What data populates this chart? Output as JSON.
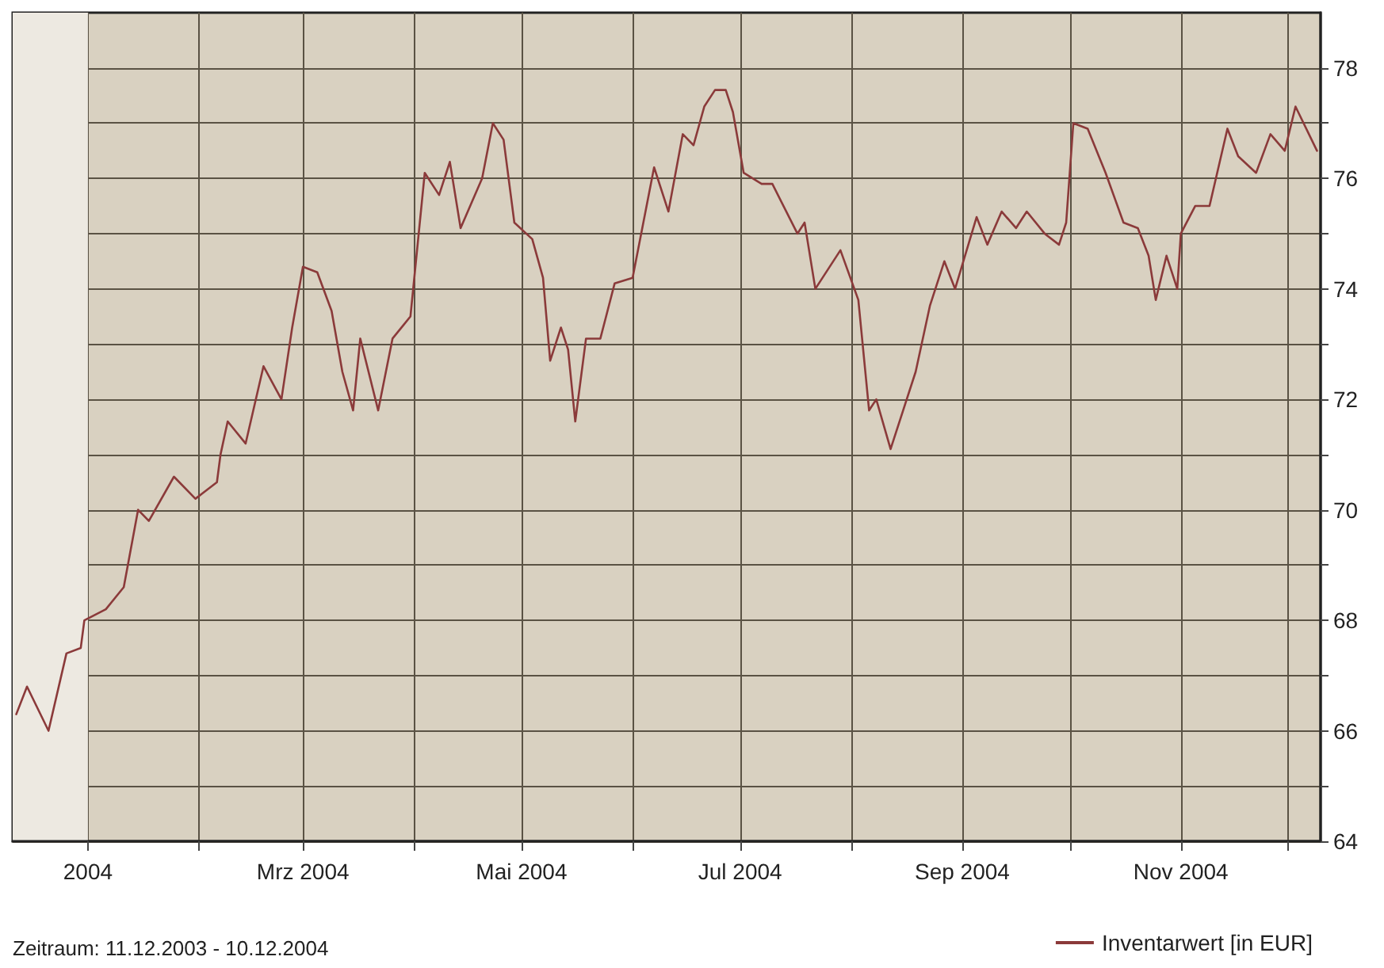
{
  "chart_data": {
    "type": "line",
    "annotations": [
      "Zeitraum: 11.12.2003 - 10.12.2004"
    ],
    "x": [
      "2003-12-12",
      "2003-12-15",
      "2003-12-21",
      "2003-12-26",
      "2003-12-30",
      "2003-12-31",
      "2004-01-06",
      "2004-01-11",
      "2004-01-15",
      "2004-01-18",
      "2004-01-25",
      "2004-01-31",
      "2004-02-06",
      "2004-02-07",
      "2004-02-09",
      "2004-02-14",
      "2004-02-19",
      "2004-02-24",
      "2004-02-27",
      "2004-03-01",
      "2004-03-05",
      "2004-03-09",
      "2004-03-12",
      "2004-03-15",
      "2004-03-17",
      "2004-03-22",
      "2004-03-26",
      "2004-03-31",
      "2004-04-04",
      "2004-04-08",
      "2004-04-11",
      "2004-04-14",
      "2004-04-20",
      "2004-04-23",
      "2004-04-26",
      "2004-04-29",
      "2004-05-04",
      "2004-05-07",
      "2004-05-09",
      "2004-05-12",
      "2004-05-14",
      "2004-05-16",
      "2004-05-19",
      "2004-05-23",
      "2004-05-27",
      "2004-06-01",
      "2004-06-07",
      "2004-06-11",
      "2004-06-15",
      "2004-06-18",
      "2004-06-21",
      "2004-06-24",
      "2004-06-27",
      "2004-06-29",
      "2004-07-02",
      "2004-07-07",
      "2004-07-10",
      "2004-07-17",
      "2004-07-19",
      "2004-07-22",
      "2004-07-29",
      "2004-08-03",
      "2004-08-06",
      "2004-08-08",
      "2004-08-12",
      "2004-08-19",
      "2004-08-23",
      "2004-08-27",
      "2004-08-30",
      "2004-09-05",
      "2004-09-08",
      "2004-09-12",
      "2004-09-16",
      "2004-09-19",
      "2004-09-24",
      "2004-09-28",
      "2004-09-30",
      "2004-10-02",
      "2004-10-06",
      "2004-10-11",
      "2004-10-16",
      "2004-10-20",
      "2004-10-23",
      "2004-10-25",
      "2004-10-28",
      "2004-10-31",
      "2004-11-01",
      "2004-11-05",
      "2004-11-09",
      "2004-11-14",
      "2004-11-17",
      "2004-11-22",
      "2004-11-26",
      "2004-11-30",
      "2004-12-03",
      "2004-12-09"
    ],
    "series": [
      {
        "name": "Inventarwert [in EUR]",
        "color": "#8b3a3a",
        "values": [
          66.3,
          66.8,
          66.0,
          67.4,
          67.5,
          68.0,
          68.2,
          68.6,
          70.0,
          69.8,
          70.6,
          70.2,
          70.5,
          71.0,
          71.6,
          71.2,
          72.6,
          72.0,
          73.3,
          74.4,
          74.3,
          73.6,
          72.5,
          71.8,
          73.1,
          71.8,
          73.1,
          73.5,
          76.1,
          75.7,
          76.3,
          75.1,
          76.0,
          77.0,
          76.7,
          75.2,
          74.9,
          74.2,
          72.7,
          73.3,
          72.9,
          71.6,
          73.1,
          73.1,
          74.1,
          74.2,
          76.2,
          75.4,
          76.8,
          76.6,
          77.3,
          77.6,
          77.6,
          77.2,
          76.1,
          75.9,
          75.9,
          75.0,
          75.2,
          74.0,
          74.7,
          73.8,
          71.8,
          72.0,
          71.1,
          72.5,
          73.7,
          74.5,
          74.0,
          75.3,
          74.8,
          75.4,
          75.1,
          75.4,
          75.0,
          74.8,
          75.2,
          77.0,
          76.9,
          76.1,
          75.2,
          75.1,
          74.6,
          73.8,
          74.6,
          74.0,
          75.0,
          75.5,
          75.5,
          76.9,
          76.4,
          76.1,
          76.8,
          76.5,
          77.3,
          76.5
        ]
      }
    ],
    "xlim": [
      "2003-12-11",
      "2004-12-10"
    ],
    "xticks": [
      {
        "value": "2004-01-01",
        "label": "2004"
      },
      {
        "value": "2004-02-01",
        "label": null
      },
      {
        "value": "2004-03-01",
        "label": "Mrz 2004"
      },
      {
        "value": "2004-04-01",
        "label": null
      },
      {
        "value": "2004-05-01",
        "label": "Mai 2004"
      },
      {
        "value": "2004-06-01",
        "label": null
      },
      {
        "value": "2004-07-01",
        "label": "Jul 2004"
      },
      {
        "value": "2004-08-01",
        "label": null
      },
      {
        "value": "2004-09-01",
        "label": "Sep 2004"
      },
      {
        "value": "2004-10-01",
        "label": null
      },
      {
        "value": "2004-11-01",
        "label": "Nov 2004"
      },
      {
        "value": "2004-12-01",
        "label": null
      }
    ],
    "ylim": [
      64,
      79
    ],
    "yticks": [
      64,
      {
        "value": 65,
        "label": null
      },
      66,
      {
        "value": 67,
        "label": null
      },
      68,
      {
        "value": 69,
        "label": null
      },
      70,
      {
        "value": 71,
        "label": null
      },
      72,
      {
        "value": 73,
        "label": null
      },
      74,
      {
        "value": 75,
        "label": null
      },
      76,
      {
        "value": 77,
        "label": null
      },
      78
    ],
    "bands": [
      {
        "axis": "x",
        "from": "2003-12-11",
        "to": "2004-01-01",
        "color": "#ede9e1"
      }
    ],
    "grid": true,
    "legend": "bottom right",
    "line_style": "solid",
    "marker": "none"
  }
}
